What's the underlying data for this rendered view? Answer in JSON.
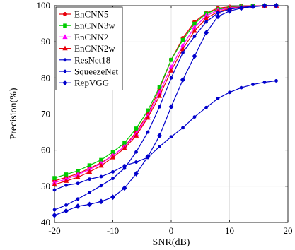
{
  "chart_data": {
    "type": "line",
    "xlabel": "SNR(dB)",
    "ylabel": "Precision(%)",
    "xlim": [
      -20,
      20
    ],
    "ylim": [
      40,
      100
    ],
    "xticks": [
      -20,
      -10,
      0,
      10,
      20
    ],
    "yticks": [
      40,
      50,
      60,
      70,
      80,
      90,
      100
    ],
    "grid": true,
    "legend_position": "top-left",
    "x": [
      -20,
      -18,
      -16,
      -14,
      -12,
      -10,
      -8,
      -6,
      -4,
      -2,
      0,
      2,
      4,
      6,
      8,
      10,
      12,
      14,
      16,
      18
    ],
    "series": [
      {
        "name": "EnCNN5",
        "color": "#e8000b",
        "marker": "circle",
        "values": [
          51.5,
          52.5,
          53.5,
          55,
          56.5,
          58.5,
          61,
          65,
          70,
          77,
          85,
          91,
          95.5,
          98,
          99.3,
          99.7,
          99.9,
          100,
          100,
          100
        ]
      },
      {
        "name": "EnCNN3w",
        "color": "#00cc00",
        "marker": "square",
        "values": [
          52.3,
          53.3,
          54.3,
          55.8,
          57.3,
          59.5,
          62,
          66,
          71,
          77.5,
          85,
          90.5,
          95,
          97.8,
          99,
          99.5,
          99.8,
          99.9,
          100,
          100
        ]
      },
      {
        "name": "EnCNN2",
        "color": "#ff00ff",
        "marker": "triangle",
        "values": [
          51,
          52,
          53.2,
          54.7,
          56.3,
          58.5,
          61,
          64.5,
          69.5,
          76,
          83,
          89,
          94,
          97.2,
          98.7,
          99.4,
          99.7,
          99.9,
          100,
          100
        ]
      },
      {
        "name": "EnCNN2w",
        "color": "#e8000b",
        "marker": "triangle",
        "values": [
          50.5,
          51.5,
          52.5,
          54,
          55.7,
          58,
          60.5,
          64,
          69,
          75,
          82,
          88,
          93,
          96.5,
          98.3,
          99.2,
          99.6,
          99.8,
          100,
          100
        ]
      },
      {
        "name": "ResNet18",
        "color": "#0000cc",
        "marker": "dot",
        "values": [
          49,
          50.3,
          50.8,
          52,
          52.7,
          54,
          55.7,
          56.7,
          58,
          61,
          63.7,
          66.2,
          69.2,
          71.8,
          74.3,
          76,
          77.3,
          78.2,
          78.8,
          79.2
        ]
      },
      {
        "name": "SqueezeNet",
        "color": "#0000cc",
        "marker": "dot",
        "values": [
          43.5,
          44.8,
          46.5,
          48.3,
          50.2,
          52.2,
          55,
          59.5,
          65,
          72,
          80,
          87,
          91.5,
          95.5,
          98,
          99,
          99.5,
          99.8,
          100,
          100
        ]
      },
      {
        "name": "RepVGG",
        "color": "#0000cc",
        "marker": "diamond",
        "values": [
          42,
          43.2,
          44.5,
          45,
          45.8,
          47,
          49.5,
          53.5,
          58.2,
          64,
          72,
          79.5,
          86,
          92.5,
          97,
          98.5,
          99.3,
          99.7,
          100,
          100
        ]
      }
    ]
  }
}
